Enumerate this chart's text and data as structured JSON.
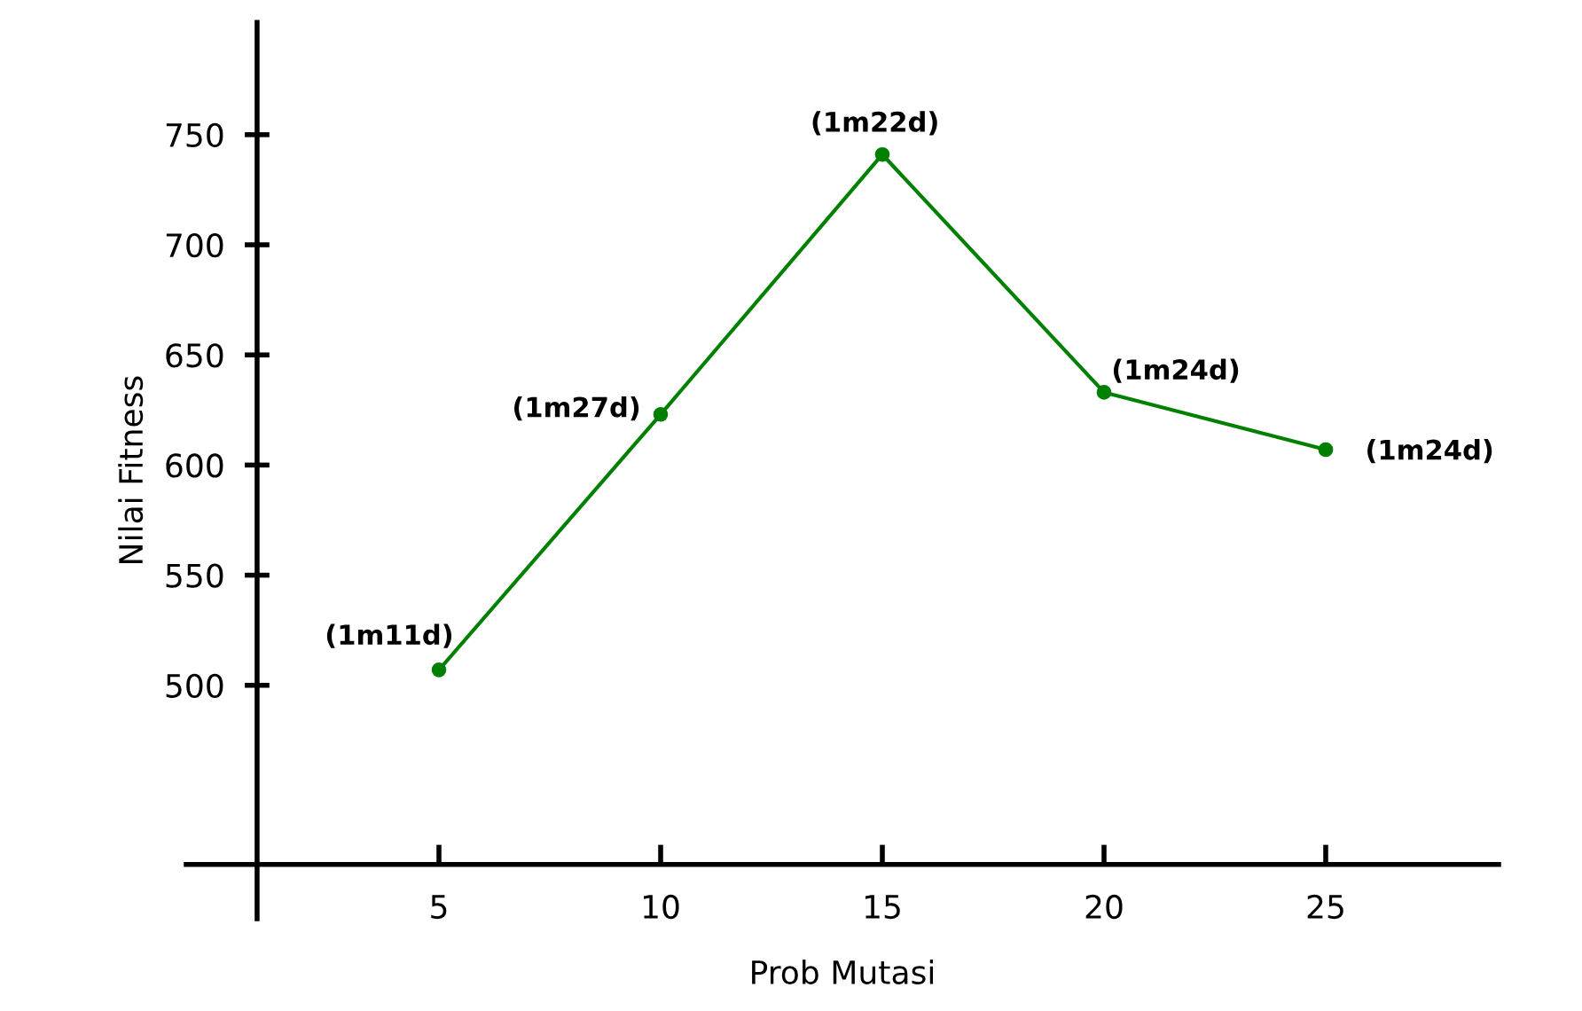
{
  "chart_data": {
    "type": "line",
    "xlabel": "Prob Mutasi",
    "ylabel": "Nilai Fitness",
    "x": [
      5,
      10,
      15,
      20,
      25
    ],
    "series": [
      {
        "color": "#008000",
        "values": [
          507,
          623,
          741,
          633,
          607
        ]
      }
    ],
    "xlim": [
      -0.7,
      28.9
    ],
    "ylim": [
      394,
      801
    ],
    "xticks": [
      5,
      10,
      15,
      20,
      25
    ],
    "yticks": [
      500,
      550,
      600,
      650,
      700,
      750
    ],
    "marker": "circle",
    "line_style": "solid",
    "grid": false,
    "legend": false,
    "annotations": [
      {
        "text": "(1m11d)",
        "x": 5,
        "y": 507
      },
      {
        "text": "(1m27d)",
        "x": 10,
        "y": 623
      },
      {
        "text": "(1m22d)",
        "x": 15,
        "y": 741
      },
      {
        "text": "(1m24d)",
        "x": 20,
        "y": 633
      },
      {
        "text": "(1m24d)",
        "x": 25,
        "y": 607
      }
    ]
  }
}
